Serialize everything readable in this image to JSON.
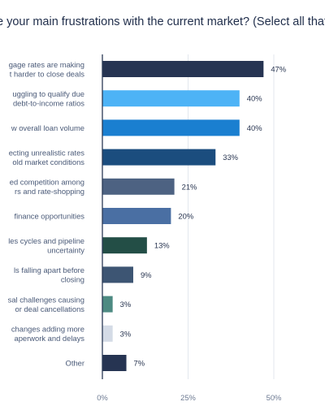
{
  "chart_data": {
    "type": "bar",
    "orientation": "horizontal",
    "title": "e your main frustrations with the current market? (Select all that ap",
    "categories": [
      [
        "gage rates are making",
        "t harder to close deals"
      ],
      [
        "uggling to qualify due",
        "debt-to-income ratios"
      ],
      [
        "w overall loan volume"
      ],
      [
        "ecting unrealistic rates",
        "old market conditions"
      ],
      [
        "ed competition among",
        "rs and rate-shopping"
      ],
      [
        "finance opportunities"
      ],
      [
        "les cycles and pipeline",
        "uncertainty"
      ],
      [
        "ls falling apart before",
        "closing"
      ],
      [
        "sal challenges causing",
        "or deal cancellations"
      ],
      [
        "changes adding more",
        "aperwork and delays"
      ],
      [
        "Other"
      ]
    ],
    "values": [
      47,
      40,
      40,
      33,
      21,
      20,
      13,
      9,
      3,
      3,
      7
    ],
    "value_labels": [
      "47%",
      "40%",
      "40%",
      "33%",
      "21%",
      "20%",
      "13%",
      "9%",
      "3%",
      "3%",
      "7%"
    ],
    "colors": [
      "#263452",
      "#4db3f6",
      "#1a7fd0",
      "#1b4d7e",
      "#4d6282",
      "#4a6fa3",
      "#234e46",
      "#3d5573",
      "#4d8a82",
      "#d4dbe6",
      "#263452"
    ],
    "xlim": [
      0,
      50
    ],
    "x_ticks": [
      0,
      25,
      50
    ],
    "x_tick_labels": [
      "0%",
      "25%",
      "50%"
    ],
    "xlabel": "",
    "ylabel": "",
    "grid": true,
    "legend": "none"
  }
}
